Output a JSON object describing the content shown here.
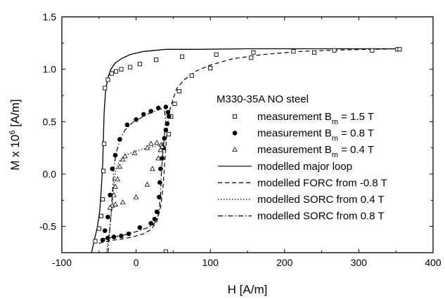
{
  "chart_data": {
    "type": "scatter",
    "xlabel": "H [A/m]",
    "ylabel": "M x 10^6 [A/m]",
    "ylabel_parts": {
      "main": "M x 10",
      "exp": "6",
      "unit": " [A/m]"
    },
    "xlim": [
      -100,
      400
    ],
    "ylim": [
      -0.75,
      1.5
    ],
    "xticks": [
      -100,
      0,
      100,
      200,
      300,
      400
    ],
    "xtick_labels": [
      "-100",
      "0",
      "100",
      "200",
      "300",
      "400"
    ],
    "yticks": [
      -0.5,
      0.0,
      0.5,
      1.0,
      1.5
    ],
    "ytick_labels": [
      "-0.5",
      "0.0",
      "0.5",
      "1.0",
      "1.5"
    ],
    "grid": false,
    "legend": {
      "placement": "right",
      "heading": "M330-35A NO steel",
      "entries": [
        {
          "marker": "square-open",
          "text": "measurement B",
          "sub": "m",
          "suffix": " = 1.5 T"
        },
        {
          "marker": "circle-filled",
          "text": "measurement B",
          "sub": "m",
          "suffix": " = 0.8 T"
        },
        {
          "marker": "triangle-open",
          "text": "measurement B",
          "sub": "m",
          "suffix": " = 0.4 T"
        },
        {
          "line": "solid",
          "text": "modelled major loop"
        },
        {
          "line": "dashed",
          "text": "modelled FORC from -0.8 T"
        },
        {
          "line": "dotted",
          "text": "modelled SORC from 0.4 T"
        },
        {
          "line": "dashdot",
          "text": "modelled SORC from 0.8 T"
        }
      ]
    },
    "series": [
      {
        "marker": "square-open",
        "points": [
          [
            -55,
            -0.64
          ],
          [
            -50,
            -0.52
          ],
          [
            -47,
            -0.4
          ],
          [
            -45,
            -0.24
          ],
          [
            -44,
            0.03
          ],
          [
            -43,
            0.29
          ],
          [
            -42,
            0.82
          ],
          [
            -38,
            0.9
          ],
          [
            -33,
            0.96
          ],
          [
            -27,
            0.98
          ],
          [
            -20,
            1.0
          ],
          [
            -8,
            1.02
          ],
          [
            5,
            1.05
          ],
          [
            27,
            1.09
          ],
          [
            62,
            1.12
          ],
          [
            108,
            1.14
          ],
          [
            158,
            1.16
          ],
          [
            212,
            1.17
          ],
          [
            240,
            1.16
          ],
          [
            267,
            1.18
          ],
          [
            318,
            1.18
          ],
          [
            352,
            1.19
          ],
          [
            355,
            1.19
          ],
          [
            155,
            1.11
          ],
          [
            100,
            1.01
          ],
          [
            75,
            0.94
          ],
          [
            58,
            0.79
          ],
          [
            52,
            0.67
          ],
          [
            47,
            0.55
          ],
          [
            44,
            0.38
          ],
          [
            40,
            -0.74
          ]
        ]
      },
      {
        "marker": "circle-filled",
        "points": [
          [
            -45,
            -0.63
          ],
          [
            -42,
            -0.54
          ],
          [
            -38,
            -0.41
          ],
          [
            -35,
            -0.2
          ],
          [
            -32,
            0.05
          ],
          [
            -28,
            0.18
          ],
          [
            -22,
            0.33
          ],
          [
            -12,
            0.47
          ],
          [
            0,
            0.52
          ],
          [
            10,
            0.57
          ],
          [
            20,
            0.6
          ],
          [
            30,
            0.63
          ],
          [
            40,
            0.64
          ],
          [
            43,
            0.59
          ],
          [
            44,
            0.55
          ],
          [
            42,
            0.48
          ],
          [
            40,
            0.42
          ],
          [
            38,
            0.34
          ],
          [
            37,
            0.25
          ],
          [
            35,
            0.15
          ],
          [
            33,
            0.05
          ],
          [
            32,
            -0.08
          ],
          [
            31,
            -0.22
          ],
          [
            28,
            -0.36
          ],
          [
            25,
            -0.43
          ],
          [
            20,
            -0.47
          ],
          [
            5,
            -0.51
          ],
          [
            -10,
            -0.57
          ],
          [
            -20,
            -0.59
          ],
          [
            -30,
            -0.6
          ],
          [
            -38,
            -0.61
          ]
        ]
      },
      {
        "marker": "triangle-open",
        "points": [
          [
            -32,
            -0.3
          ],
          [
            -30,
            -0.2
          ],
          [
            -28,
            -0.12
          ],
          [
            -25,
            -0.05
          ],
          [
            -22,
            0.07
          ],
          [
            -18,
            0.14
          ],
          [
            -15,
            0.17
          ],
          [
            -2,
            0.2
          ],
          [
            15,
            0.25
          ],
          [
            20,
            0.29
          ],
          [
            28,
            0.3
          ],
          [
            34,
            0.28
          ],
          [
            35,
            0.26
          ],
          [
            33,
            0.23
          ],
          [
            30,
            0.15
          ],
          [
            22,
            0.05
          ],
          [
            15,
            -0.1
          ],
          [
            0,
            -0.22
          ],
          [
            -18,
            -0.27
          ],
          [
            -28,
            -0.29
          ],
          [
            -35,
            -0.32
          ]
        ]
      }
    ],
    "curves": [
      {
        "style": "solid",
        "points": [
          [
            -60,
            -0.75
          ],
          [
            -56,
            -0.62
          ],
          [
            -52,
            -0.5
          ],
          [
            -49,
            -0.35
          ],
          [
            -47,
            -0.15
          ],
          [
            -45,
            0.1
          ],
          [
            -44,
            0.35
          ],
          [
            -43,
            0.6
          ],
          [
            -41,
            0.8
          ],
          [
            -38,
            0.92
          ],
          [
            -34,
            1.0
          ],
          [
            -28,
            1.06
          ],
          [
            -20,
            1.1
          ],
          [
            -8,
            1.14
          ],
          [
            10,
            1.17
          ],
          [
            40,
            1.19
          ],
          [
            80,
            1.19
          ],
          [
            150,
            1.195
          ],
          [
            250,
            1.195
          ],
          [
            357,
            1.195
          ]
        ]
      },
      {
        "style": "dashed",
        "points": [
          [
            -50,
            -0.66
          ],
          [
            -35,
            -0.635
          ],
          [
            -20,
            -0.62
          ],
          [
            -5,
            -0.6
          ],
          [
            10,
            -0.57
          ],
          [
            20,
            -0.53
          ],
          [
            28,
            -0.45
          ],
          [
            33,
            -0.32
          ],
          [
            36,
            -0.15
          ],
          [
            38,
            0.05
          ],
          [
            40,
            0.25
          ],
          [
            42,
            0.45
          ],
          [
            45,
            0.6
          ],
          [
            50,
            0.72
          ],
          [
            55,
            0.82
          ],
          [
            65,
            0.9
          ],
          [
            80,
            0.98
          ],
          [
            100,
            1.04
          ],
          [
            130,
            1.1
          ],
          [
            170,
            1.14
          ],
          [
            220,
            1.17
          ],
          [
            280,
            1.185
          ],
          [
            357,
            1.195
          ]
        ]
      },
      {
        "style": "dotted",
        "points": [
          [
            -40,
            -0.75
          ],
          [
            -36,
            -0.55
          ],
          [
            -33,
            -0.35
          ],
          [
            -30,
            -0.1
          ],
          [
            -27,
            0.05
          ],
          [
            -22,
            0.13
          ],
          [
            -14,
            0.18
          ],
          [
            0,
            0.22
          ],
          [
            15,
            0.25
          ],
          [
            28,
            0.27
          ],
          [
            35,
            0.28
          ],
          [
            37,
            0.3
          ]
        ]
      },
      {
        "style": "dashdot",
        "points": [
          [
            -38,
            -0.75
          ],
          [
            -35,
            -0.5
          ],
          [
            -32,
            -0.2
          ],
          [
            -30,
            0.05
          ],
          [
            -27,
            0.2
          ],
          [
            -22,
            0.32
          ],
          [
            -15,
            0.42
          ],
          [
            -5,
            0.49
          ],
          [
            5,
            0.53
          ],
          [
            15,
            0.57
          ],
          [
            25,
            0.6
          ],
          [
            33,
            0.62
          ],
          [
            38,
            0.63
          ],
          [
            40,
            0.5
          ],
          [
            38,
            0.36
          ],
          [
            36,
            0.2
          ],
          [
            34,
            0.0
          ],
          [
            33,
            -0.2
          ],
          [
            31,
            -0.35
          ],
          [
            28,
            -0.44
          ],
          [
            22,
            -0.49
          ],
          [
            12,
            -0.52
          ],
          [
            0,
            -0.55
          ],
          [
            -15,
            -0.58
          ],
          [
            -30,
            -0.6
          ],
          [
            -45,
            -0.62
          ]
        ]
      }
    ]
  }
}
